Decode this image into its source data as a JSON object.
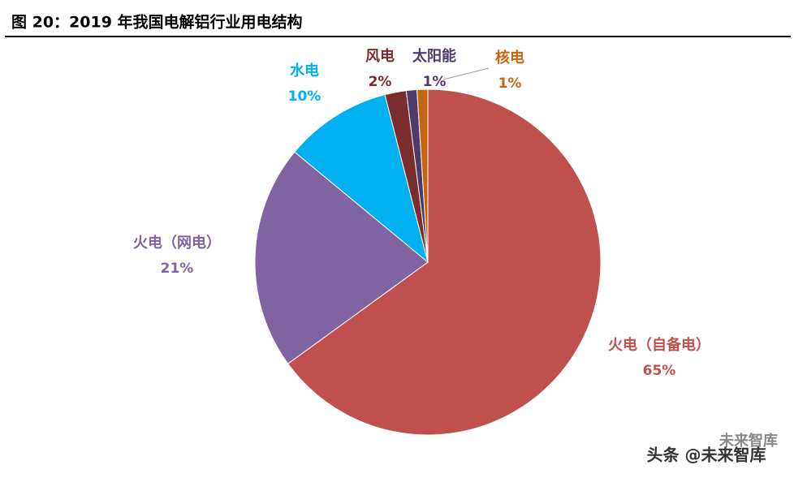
{
  "chart_data": {
    "type": "pie",
    "title": "图 20：2019 年我国电解铝行业用电结构",
    "categories": [
      "火电（自备电）",
      "火电（网电）",
      "水电",
      "风电",
      "太阳能",
      "核电"
    ],
    "values": [
      65,
      21,
      10,
      2,
      1,
      1
    ],
    "value_labels": [
      "65%",
      "21%",
      "10%",
      "2%",
      "1%",
      "1%"
    ],
    "colors": [
      "#C0504D",
      "#8064A2",
      "#00B0F0",
      "#7B2C2C",
      "#4F3B6B",
      "#C5660E"
    ],
    "watermarks": [
      "未来智库",
      "头条 @未来智库"
    ]
  }
}
